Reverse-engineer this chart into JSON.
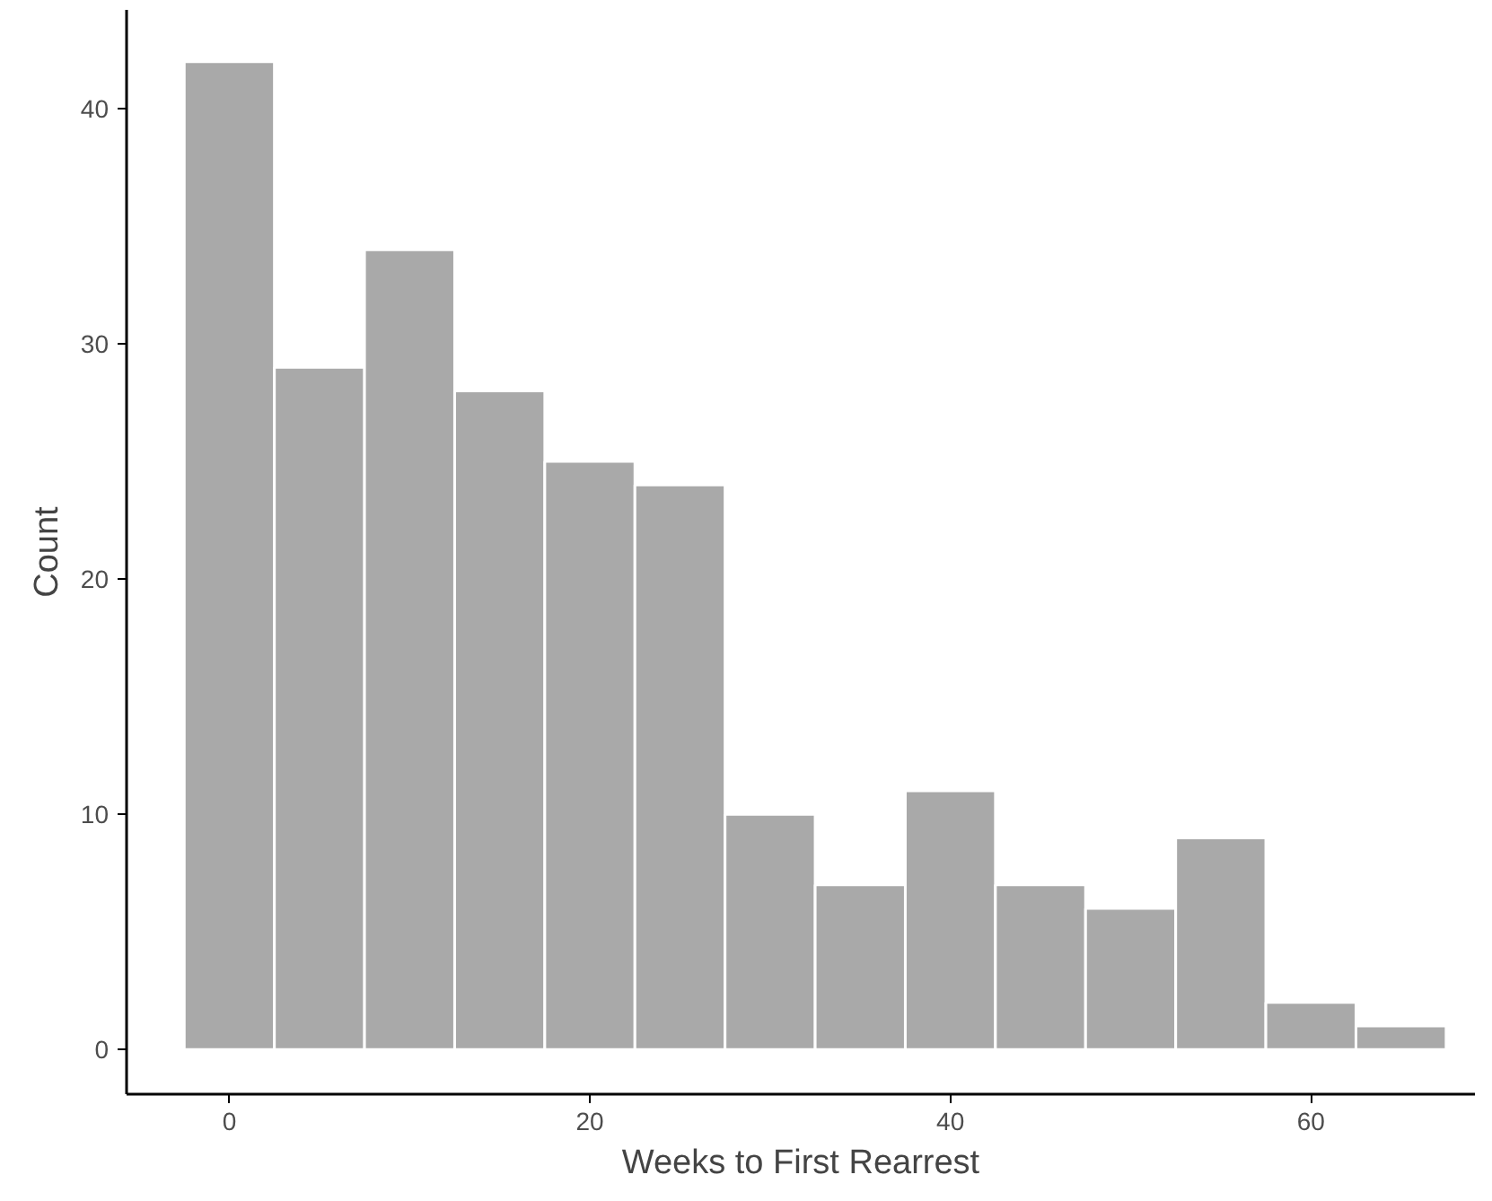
{
  "chart_data": {
    "type": "histogram",
    "xlabel": "Weeks to First Rearrest",
    "ylabel": "Count",
    "bins": [
      -2.5,
      2.5,
      7.5,
      12.5,
      17.5,
      22.5,
      27.5,
      32.5,
      37.5,
      42.5,
      47.5,
      52.5,
      57.5,
      62.5,
      67.5
    ],
    "values": [
      42,
      29,
      34,
      28,
      25,
      24,
      10,
      7,
      11,
      7,
      6,
      9,
      2,
      1
    ],
    "color": "#a9a9a9",
    "xlim": [
      -5.7,
      69.1
    ],
    "ylim": [
      -1.9,
      44.2
    ],
    "xticks": [
      0,
      20,
      40,
      60
    ],
    "yticks": [
      0,
      10,
      20,
      30,
      40
    ],
    "grid": false
  }
}
